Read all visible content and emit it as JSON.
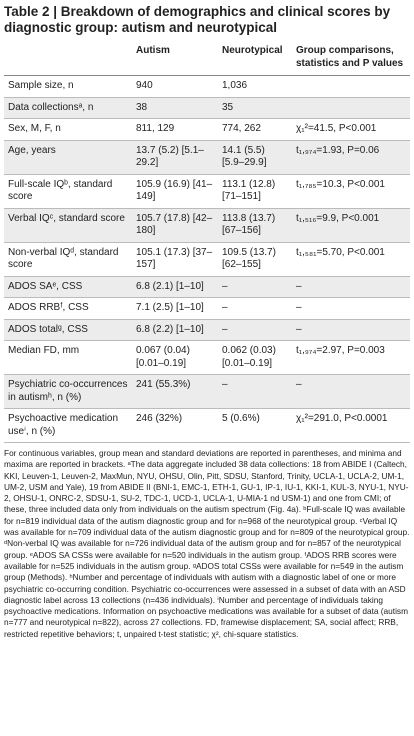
{
  "title": "Table 2 | Breakdown of demographics and clinical scores by diagnostic group: autism and neurotypical",
  "table": {
    "header": [
      null,
      "Autism",
      "Neurotypical",
      "Group comparisons, statistics and P values"
    ],
    "rows": [
      [
        "Sample size, n",
        "940",
        "1,036",
        null
      ],
      [
        "Data collectionsᵃ, n",
        "38",
        "35",
        null
      ],
      [
        "Sex, M, F, n",
        "811, 129",
        "774, 262",
        "χ₁²=41.5, P<0.001"
      ],
      [
        "Age, years",
        "13.7 (5.2) [5.1–29.2]",
        "14.1 (5.5) [5.9–29.9]",
        "t₁,₉₇₄=1.93, P=0.06"
      ],
      [
        "Full-scale IQᵇ, standard score",
        "105.9 (16.9) [41–149]",
        "113.1 (12.8) [71–151]",
        "t₁,₇₈₅=10.3, P<0.001"
      ],
      [
        "Verbal IQᶜ, standard score",
        "105.7 (17.8) [42–180]",
        "113.8 (13.7) [67–156]",
        "t₁,₅₁₆=9.9, P<0.001"
      ],
      [
        "Non-verbal IQᵈ, standard score",
        "105.1 (17.3) [37–157]",
        "109.5 (13.7) [62–155]",
        "t₁,₅₈₁=5.70, P<0.001"
      ],
      [
        "ADOS SAᵉ, CSS",
        "6.8 (2.1) [1–10]",
        "–",
        "–"
      ],
      [
        "ADOS RRBᶠ, CSS",
        "7.1 (2.5) [1–10]",
        "–",
        "–"
      ],
      [
        "ADOS totalᵍ, CSS",
        "6.8 (2.2) [1–10]",
        "–",
        "–"
      ],
      [
        "Median FD, mm",
        "0.067 (0.04) [0.01–0.19]",
        "0.062 (0.03) [0.01–0.19]",
        "t₁,₉₇₄=2.97, P=0.003"
      ],
      [
        "Psychiatric co-occurrences in autismʰ, n (%)",
        "241 (55.3%)",
        "–",
        "–"
      ],
      [
        "Psychoactive medication useⁱ, n (%)",
        "246 (32%)",
        "5 (0.6%)",
        "χ₁²=291.0, P<0.0001"
      ]
    ]
  },
  "footnote": "For continuous variables, group mean and standard deviations are reported in parentheses, and minima and maxima are reported in brackets. ᵃThe data aggregate included 38 data collections: 18 from ABIDE I (Caltech, KKI, Leuven-1, Leuven-2, MaxMun, NYU, OHSU, Olin, Pitt, SDSU, Stanford, Trinity, UCLA-1, UCLA-2, UM-1, UM-2, USM and Yale), 19 from ABIDE II (BNI-1, EMC-1, ETH-1, GU-1, IP-1, IU-1, KKI-1, KUL-3, NYU-1, NYU-2, OHSU-1, ONRC-2, SDSU-1, SU-2, TDC-1, UCD-1, UCLA-1, U-MIA-1 nd USM-1) and one from CMI; of these, three included data only from individuals on the autism spectrum (Fig. 4a). ᵇFull-scale IQ was available for n=819 individual data of the autism diagnostic group and for n=968 of the neurotypical group. ᶜVerbal IQ was available for n=709 individual data of the autism diagnostic group and for n=809 of the neurotypical group. ᵈNon-verbal IQ was available for n=726 individual data of the autism group and for n=857 of the neurotypical group. ᵉADOS SA CSSs were available for n=520 individuals in the autism group. ᶠADOS RRB scores were available for n=525 individuals in the autism group. ᵍADOS total CSSs were available for n=549 in the autism group (Methods). ʰNumber and percentage of individuals with autism with a diagnostic label of one or more psychiatric co-occurring condition. Psychiatric co-occurrences were assessed in a subset of data with an ASD diagnostic label across 13 collections (n=436 individuals). ⁱNumber and percentage of individuals taking psychoactive medications. Information on psychoactive medications was available for a subset of data (autism n=777 and neurotypical n=822), across 27 collections. FD, framewise displacement; SA, social affect; RRB, restricted repetitive behaviors; t, unpaired t-test statistic; χ², chi-square statistics."
}
